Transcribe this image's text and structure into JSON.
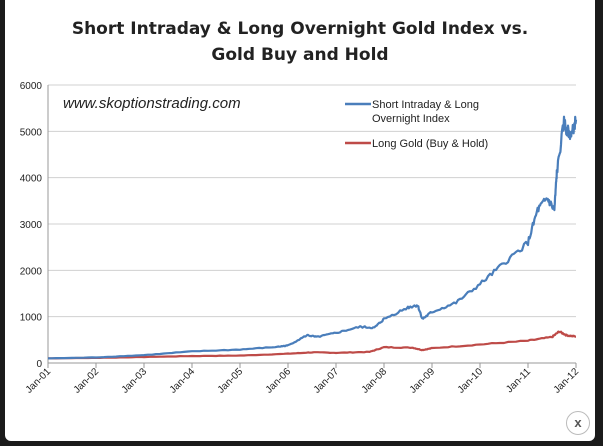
{
  "chart_data": {
    "type": "line",
    "title": [
      "Short Intraday & Long Overnight Gold Index vs.",
      "Gold Buy and Hold"
    ],
    "watermark": "www.skoptionstrading.com",
    "xlabel": "",
    "ylabel": "",
    "ylim": [
      0,
      6000
    ],
    "yticks": [
      0,
      1000,
      2000,
      3000,
      4000,
      5000,
      6000
    ],
    "xlim": [
      2001,
      2012
    ],
    "xticks": [
      "Jan-01",
      "Jan-02",
      "Jan-03",
      "Jan-04",
      "Jan-05",
      "Jan-06",
      "Jan-07",
      "Jan-08",
      "Jan-09",
      "Jan-10",
      "Jan-11",
      "Jan-12"
    ],
    "legend_position": "top-right",
    "series": [
      {
        "name": "Short Intraday & Long Overnight Index",
        "color": "#4a7ebb",
        "x": [
          2001,
          2002,
          2003,
          2004,
          2005,
          2005.8,
          2006,
          2006.4,
          2006.6,
          2007,
          2007.5,
          2007.8,
          2008,
          2008.5,
          2008.7,
          2008.8,
          2009,
          2009.5,
          2010,
          2010.5,
          2011,
          2011.2,
          2011.4,
          2011.55,
          2011.6,
          2011.75,
          2011.8,
          2011.9,
          2012
        ],
        "y": [
          100,
          120,
          170,
          250,
          290,
          350,
          380,
          600,
          560,
          650,
          780,
          760,
          950,
          1200,
          1250,
          950,
          1100,
          1300,
          1700,
          2150,
          2600,
          3300,
          3550,
          3300,
          4100,
          5200,
          5050,
          4900,
          5250
        ]
      },
      {
        "name": "Long Gold (Buy & Hold)",
        "color": "#be4b48",
        "x": [
          2001,
          2002,
          2003,
          2004,
          2005,
          2006,
          2006.5,
          2007,
          2007.7,
          2008,
          2008.6,
          2008.8,
          2009,
          2010,
          2011,
          2011.5,
          2011.65,
          2011.8,
          2012
        ],
        "y": [
          100,
          110,
          130,
          150,
          160,
          200,
          230,
          220,
          240,
          340,
          330,
          280,
          320,
          400,
          480,
          560,
          680,
          600,
          570
        ]
      }
    ]
  },
  "close_label": "x"
}
